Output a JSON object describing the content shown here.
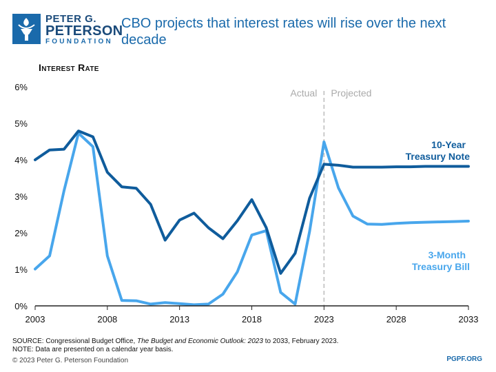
{
  "logo": {
    "line1": "PETER G.",
    "line2": "PETERSON",
    "line3": "FOUNDATION"
  },
  "title": "CBO projects that interest rates will rise over the next decade",
  "footer": {
    "source_label": "SOURCE: Congressional Budget Office, ",
    "source_title": "The Budget and Economic Outlook: 2023",
    "source_rest": " to 2033, February 2023.",
    "note": "NOTE: Data are presented on a calendar year basis.",
    "copyright": "© 2023 Peter G. Peterson Foundation",
    "site": "PGPF.ORG"
  },
  "colors": {
    "ten_year": "#0f5c9c",
    "three_month": "#48a6ec",
    "divider": "#bbbbbb"
  },
  "chart_data": {
    "type": "line",
    "ylabel": "Interest Rate",
    "ylim": [
      0,
      6
    ],
    "yticks": [
      "0%",
      "1%",
      "2%",
      "3%",
      "4%",
      "5%",
      "6%"
    ],
    "xlim": [
      2003,
      2033
    ],
    "xticks": [
      "2003",
      "2008",
      "2013",
      "2018",
      "2023",
      "2028",
      "2033"
    ],
    "divider": {
      "x": 2023,
      "left_label": "Actual",
      "right_label": "Projected"
    },
    "x": [
      2003,
      2004,
      2005,
      2006,
      2007,
      2008,
      2009,
      2010,
      2011,
      2012,
      2013,
      2014,
      2015,
      2016,
      2017,
      2018,
      2019,
      2020,
      2021,
      2022,
      2023,
      2024,
      2025,
      2026,
      2027,
      2028,
      2029,
      2030,
      2031,
      2032,
      2033
    ],
    "series": [
      {
        "name_line1": "10-Year",
        "name_line2": "Treasury Note",
        "values": [
          4.0,
          4.27,
          4.29,
          4.79,
          4.63,
          3.66,
          3.26,
          3.22,
          2.78,
          1.8,
          2.35,
          2.54,
          2.14,
          1.84,
          2.33,
          2.91,
          2.14,
          0.89,
          1.44,
          2.95,
          3.88,
          3.85,
          3.8,
          3.8,
          3.8,
          3.81,
          3.81,
          3.82,
          3.82,
          3.82,
          3.82
        ]
      },
      {
        "name_line1": "3-Month",
        "name_line2": "Treasury Bill",
        "values": [
          1.01,
          1.37,
          3.15,
          4.73,
          4.36,
          1.37,
          0.15,
          0.14,
          0.05,
          0.09,
          0.06,
          0.03,
          0.05,
          0.32,
          0.93,
          1.94,
          2.06,
          0.37,
          0.05,
          2.04,
          4.49,
          3.23,
          2.46,
          2.24,
          2.23,
          2.26,
          2.28,
          2.29,
          2.3,
          2.31,
          2.32
        ]
      }
    ]
  }
}
